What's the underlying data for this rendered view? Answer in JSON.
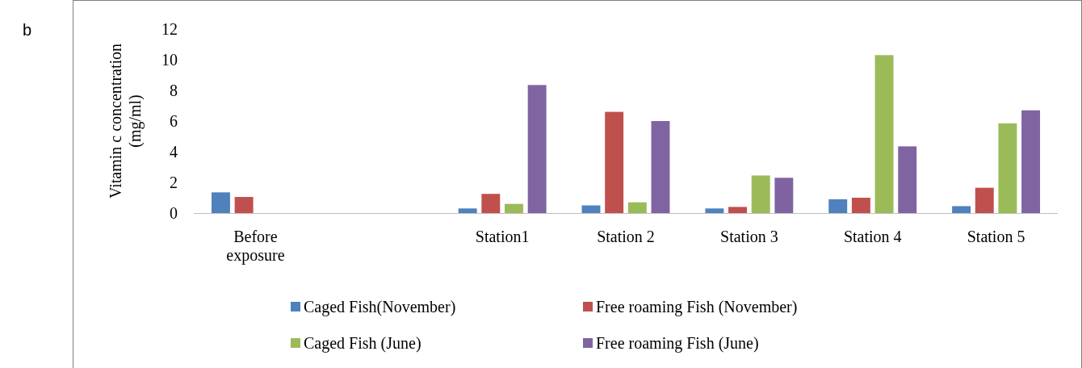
{
  "chart_data": {
    "type": "bar",
    "ylabel": "Vitamin c concentration\n(mg/ml)",
    "annotations": [
      "b"
    ],
    "categories": [
      "Before exposure",
      null,
      "Station1",
      "Station 2",
      "Station 3",
      "Station 4",
      "Station 5"
    ],
    "series": [
      {
        "name": "Caged Fish(November)",
        "color": "#4f81bd",
        "values": [
          1.35,
          null,
          0.3,
          0.5,
          0.3,
          0.9,
          0.45
        ]
      },
      {
        "name": "Free roaming Fish (November)",
        "color": "#c0504d",
        "values": [
          1.05,
          null,
          1.25,
          6.6,
          0.4,
          1.0,
          1.65
        ]
      },
      {
        "name": "Caged Fish (June)",
        "color": "#9bbb59",
        "values": [
          null,
          null,
          0.6,
          0.7,
          2.45,
          10.3,
          5.85
        ]
      },
      {
        "name": "Free roaming Fish (June)",
        "color": "#8064a2",
        "values": [
          null,
          null,
          8.35,
          6.0,
          2.3,
          4.35,
          6.7
        ]
      }
    ],
    "ylim": [
      0,
      12
    ],
    "yticks": [
      0,
      2,
      4,
      6,
      8,
      10,
      12
    ],
    "grid": false,
    "legend": "bottom"
  }
}
